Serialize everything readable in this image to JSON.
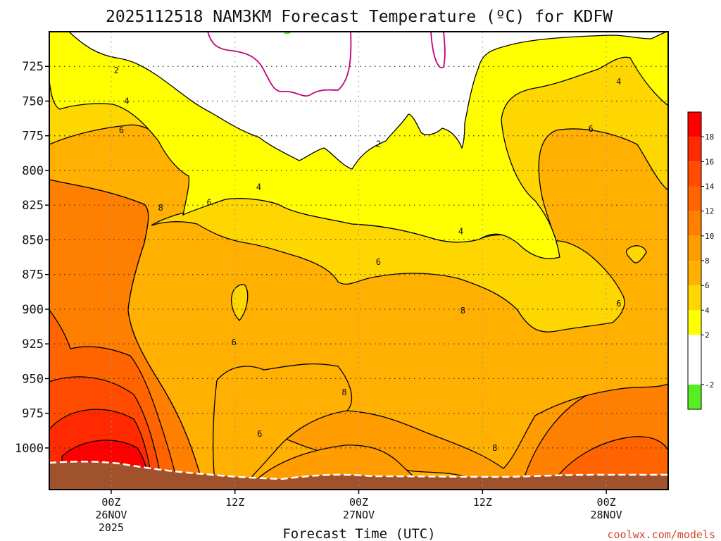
{
  "title": "2025112518 NAM3KM Forecast Temperature (ºC) for KDFW",
  "credit": "coolwx.com/models",
  "colors": {
    "frame": "#000000",
    "ground": "#a0522d",
    "band_2_4": "#ffff00",
    "band_4_6": "#ffd700",
    "band_6_8": "#ffb000",
    "band_8_10": "#ff9c00",
    "band_10_12": "#ff7f00",
    "band_12_14": "#ff6400",
    "band_14_16": "#ff4c00",
    "band_16_18": "#ff2a00",
    "band_18_20": "#ff0000",
    "freezing_line": "#c0007a",
    "below_minus2": "#55ee22"
  },
  "chart_data": {
    "type": "contour",
    "title": "2025112518 NAM3KM Forecast Temperature (ºC) for KDFW",
    "xlabel": "Forecast Time (UTC)",
    "ylabel": "",
    "y_axis": {
      "quantity": "pressure (hPa)",
      "reversed": true,
      "range": [
        700,
        1030
      ],
      "ticks": [
        725,
        750,
        775,
        800,
        825,
        850,
        875,
        900,
        925,
        950,
        975,
        1000
      ],
      "tick_labels": [
        "725",
        "750",
        "775",
        "800",
        "825",
        "850",
        "875",
        "900",
        "925",
        "950",
        "975",
        "1000"
      ]
    },
    "x_axis": {
      "quantity": "forecast hour",
      "range": [
        -6,
        54
      ],
      "ticks": [
        {
          "hour": 0,
          "line1": "00Z",
          "line2": "26NOV",
          "line3": "2025"
        },
        {
          "hour": 12,
          "line1": "12Z",
          "line2": "",
          "line3": ""
        },
        {
          "hour": 24,
          "line1": "00Z",
          "line2": "27NOV",
          "line3": ""
        },
        {
          "hour": 36,
          "line1": "12Z",
          "line2": "",
          "line3": ""
        },
        {
          "hour": 48,
          "line1": "00Z",
          "line2": "28NOV",
          "line3": ""
        }
      ]
    },
    "grid": true,
    "contour_interval_c": 2,
    "colorbar": {
      "placement": "right",
      "ticks": [
        "-2",
        "2",
        "4",
        "6",
        "8",
        "10",
        "12",
        "14",
        "16",
        "18"
      ],
      "bands": [
        {
          "min": -4,
          "max": -2,
          "color": "#55ee22"
        },
        {
          "min": -2,
          "max": 2,
          "color": "#ffffff"
        },
        {
          "min": 2,
          "max": 4,
          "color": "#ffff00"
        },
        {
          "min": 4,
          "max": 6,
          "color": "#ffd700"
        },
        {
          "min": 6,
          "max": 8,
          "color": "#ffb000"
        },
        {
          "min": 8,
          "max": 10,
          "color": "#ff9c00"
        },
        {
          "min": 10,
          "max": 12,
          "color": "#ff7f00"
        },
        {
          "min": 12,
          "max": 14,
          "color": "#ff6400"
        },
        {
          "min": 14,
          "max": 16,
          "color": "#ff4c00"
        },
        {
          "min": 16,
          "max": 18,
          "color": "#ff2a00"
        },
        {
          "min": 18,
          "max": 20,
          "color": "#ff0000"
        }
      ]
    },
    "contour_labels": [
      {
        "value": "2",
        "hour": 0.5,
        "p": 728
      },
      {
        "value": "4",
        "hour": 1.5,
        "p": 750
      },
      {
        "value": "6",
        "hour": 1.0,
        "p": 771
      },
      {
        "value": "8",
        "hour": 4.8,
        "p": 827
      },
      {
        "value": "6",
        "hour": 9.5,
        "p": 823
      },
      {
        "value": "4",
        "hour": 14.3,
        "p": 812
      },
      {
        "value": "2",
        "hour": 25.9,
        "p": 781
      },
      {
        "value": "6",
        "hour": 25.9,
        "p": 866
      },
      {
        "value": "4",
        "hour": 33.9,
        "p": 844
      },
      {
        "value": "8",
        "hour": 34.1,
        "p": 901
      },
      {
        "value": "6",
        "hour": 11.9,
        "p": 924
      },
      {
        "value": "8",
        "hour": 22.6,
        "p": 960
      },
      {
        "value": "6",
        "hour": 14.4,
        "p": 990
      },
      {
        "value": "8",
        "hour": 37.2,
        "p": 1000
      },
      {
        "value": "6",
        "hour": 46.5,
        "p": 770
      },
      {
        "value": "4",
        "hour": 49.2,
        "p": 736
      },
      {
        "value": "6",
        "hour": 49.2,
        "p": 896
      }
    ]
  }
}
